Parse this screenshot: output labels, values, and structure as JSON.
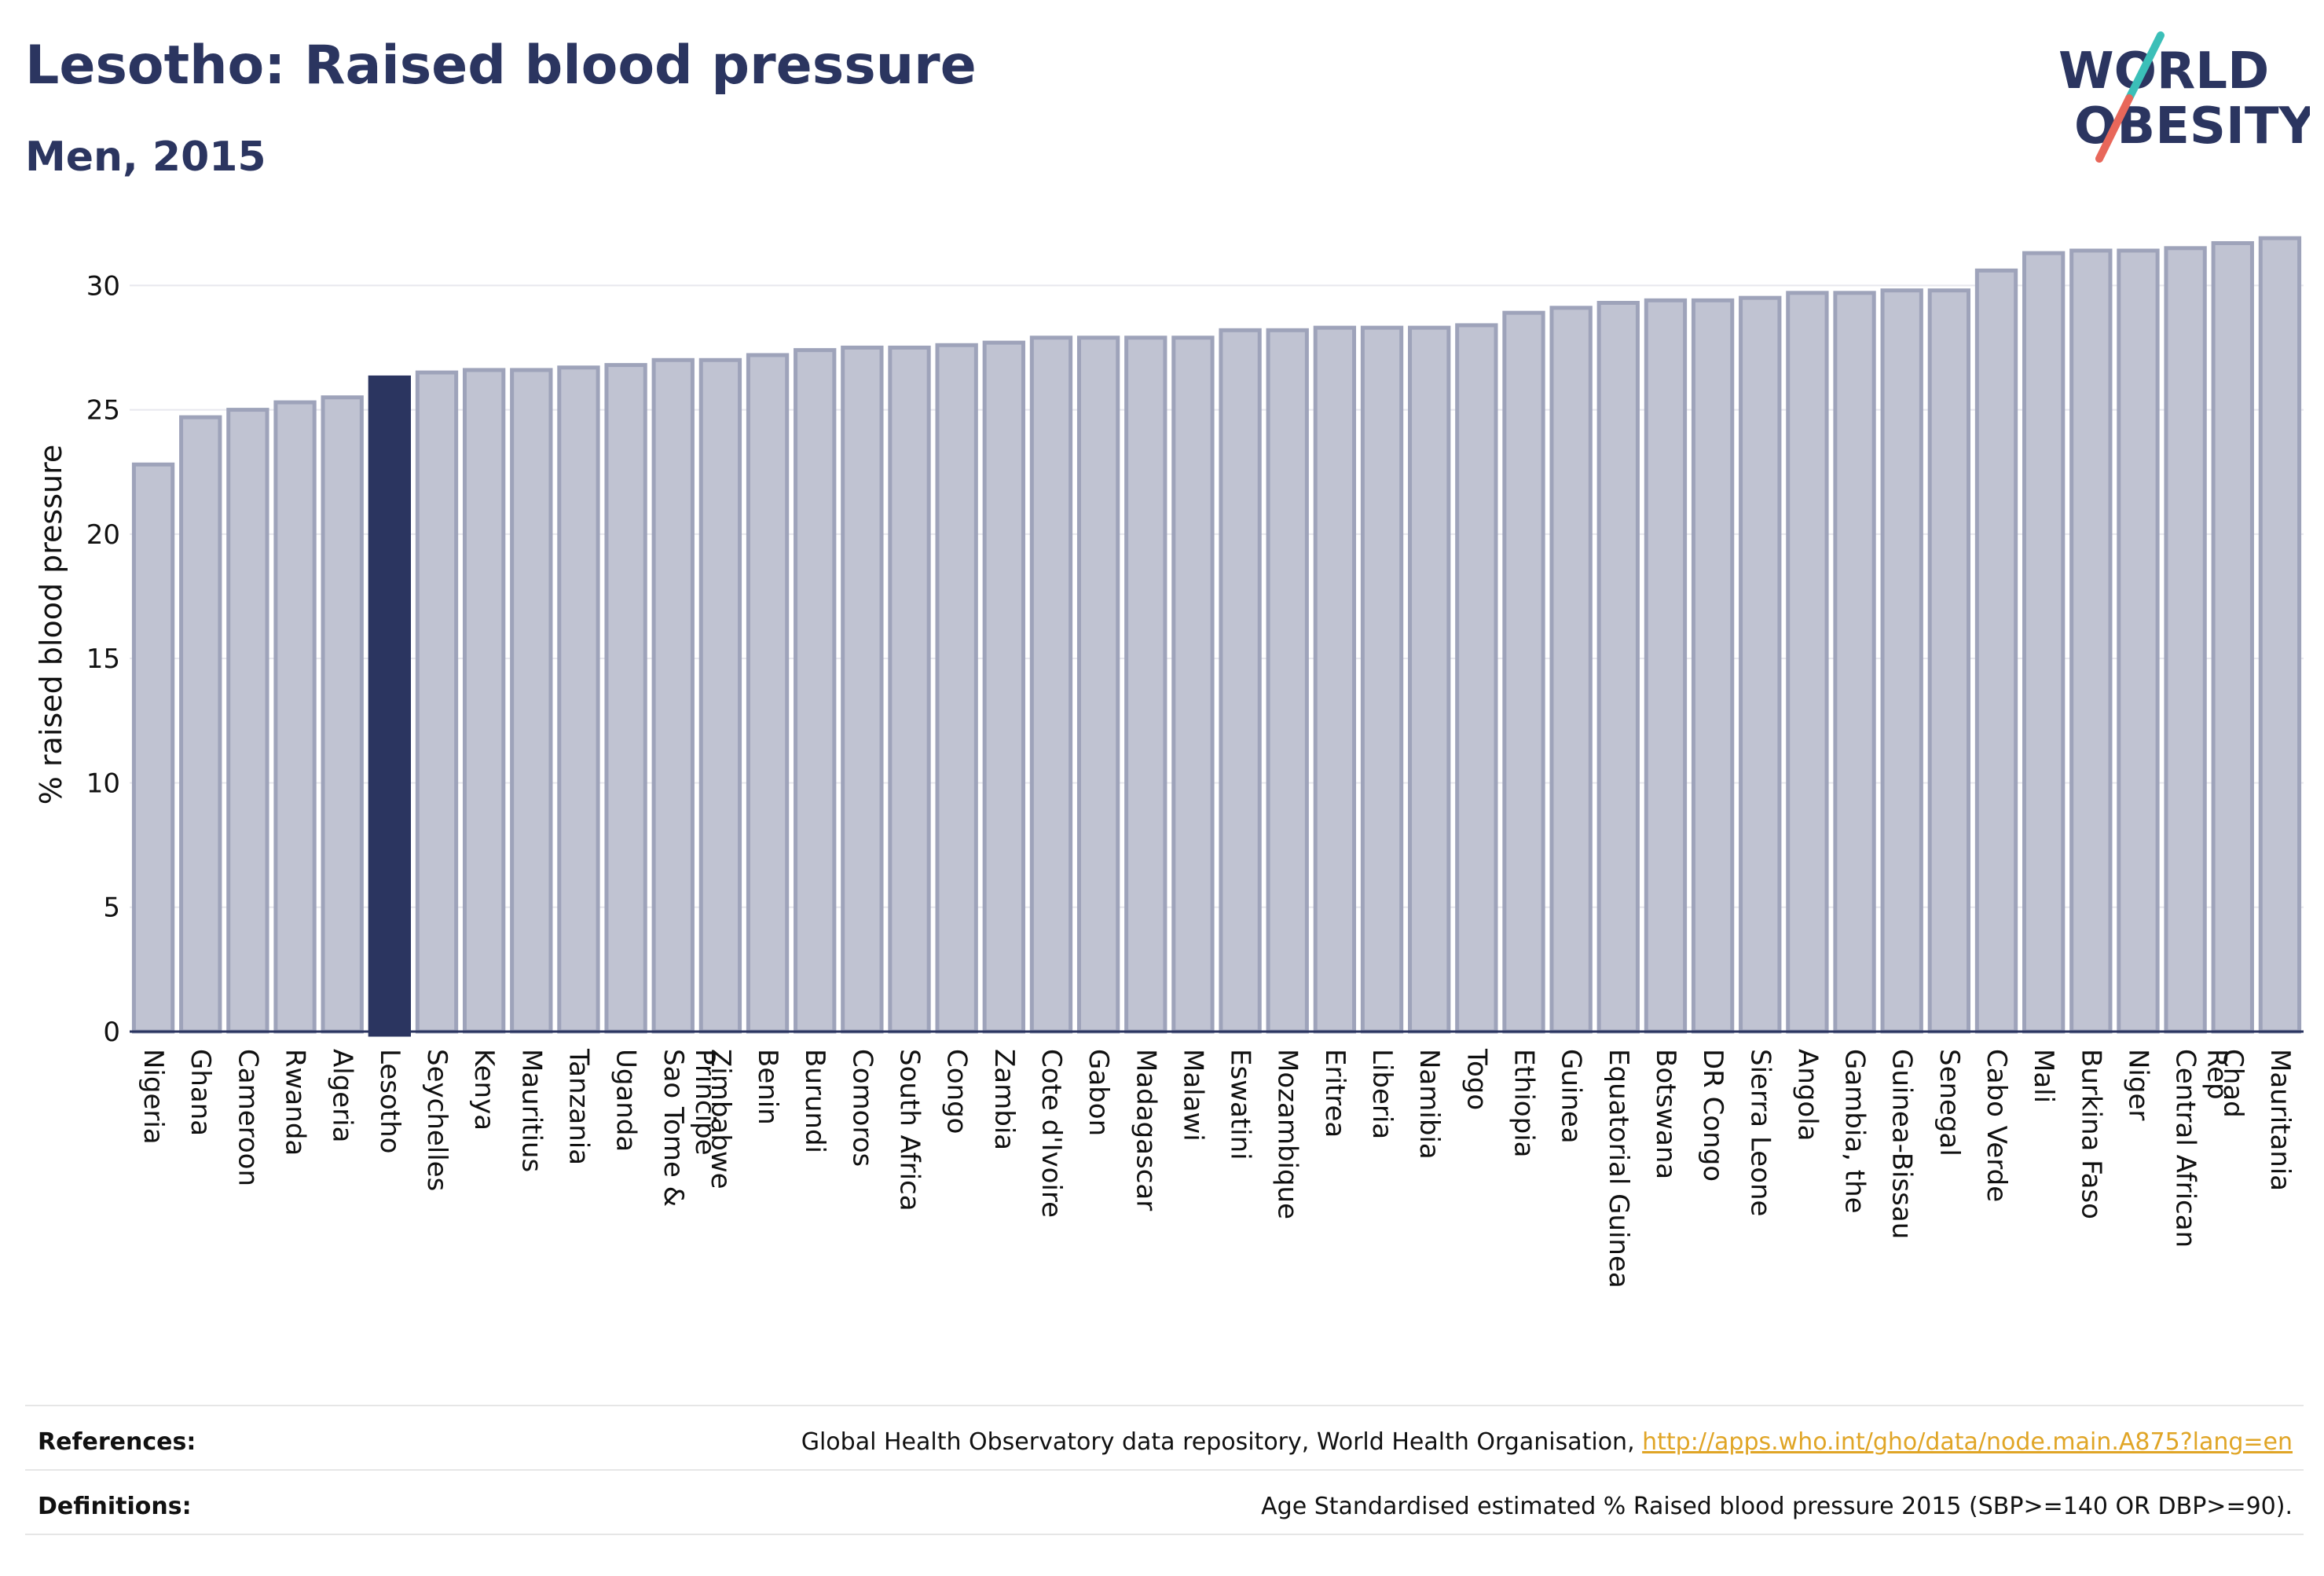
{
  "header": {
    "title": "Lesotho: Raised blood pressure",
    "subtitle": "Men, 2015"
  },
  "logo": {
    "line1": "WORLD",
    "line2": "OBESITY",
    "colors": {
      "text": "#2b3560",
      "slash_top": "#3bbfb8",
      "slash_bottom": "#e8675a"
    }
  },
  "colors": {
    "bar": "#c0c3d2",
    "bar_border": "#9ea3ba",
    "highlight": "#2b3560",
    "grid": "#e8e8ee",
    "axis": "#2b3560"
  },
  "chart_data": {
    "type": "bar",
    "ylabel": "% raised blood pressure",
    "ylim": [
      0,
      32
    ],
    "yticks": [
      0,
      5,
      10,
      15,
      20,
      25,
      30
    ],
    "grid": true,
    "highlight": "Lesotho",
    "categories": [
      "Nigeria",
      "Ghana",
      "Cameroon",
      "Rwanda",
      "Algeria",
      "Lesotho",
      "Seychelles",
      "Kenya",
      "Mauritius",
      "Tanzania",
      "Uganda",
      "Sao Tome & Principe",
      "Zimbabwe",
      "Benin",
      "Burundi",
      "Comoros",
      "South Africa",
      "Congo",
      "Zambia",
      "Cote d'Ivoire",
      "Gabon",
      "Madagascar",
      "Malawi",
      "Eswatini",
      "Mozambique",
      "Eritrea",
      "Liberia",
      "Namibia",
      "Togo",
      "Ethiopia",
      "Guinea",
      "Equatorial Guinea",
      "Botswana",
      "DR Congo",
      "Sierra Leone",
      "Angola",
      "Gambia, the",
      "Guinea-Bissau",
      "Senegal",
      "Cabo Verde",
      "Mali",
      "Burkina Faso",
      "Niger",
      "Central African Rep",
      "Chad",
      "Mauritania"
    ],
    "values": [
      22.8,
      24.7,
      25.0,
      25.3,
      25.5,
      26.3,
      26.5,
      26.6,
      26.6,
      26.7,
      26.8,
      27.0,
      27.0,
      27.2,
      27.4,
      27.5,
      27.5,
      27.6,
      27.7,
      27.9,
      27.9,
      27.9,
      27.9,
      28.2,
      28.2,
      28.3,
      28.3,
      28.3,
      28.4,
      28.9,
      29.1,
      29.3,
      29.4,
      29.4,
      29.5,
      29.7,
      29.7,
      29.8,
      29.8,
      30.6,
      31.3,
      31.4,
      31.4,
      31.5,
      31.7,
      31.9
    ]
  },
  "footer": {
    "references_label": "References:",
    "references_text": "Global Health Observatory data repository, World Health Organisation, ",
    "references_link": "http://apps.who.int/gho/data/node.main.A875?lang=en",
    "definitions_label": "Definitions:",
    "definitions_text": "Age Standardised estimated % Raised blood pressure 2015 (SBP>=140 OR DBP>=90)."
  }
}
